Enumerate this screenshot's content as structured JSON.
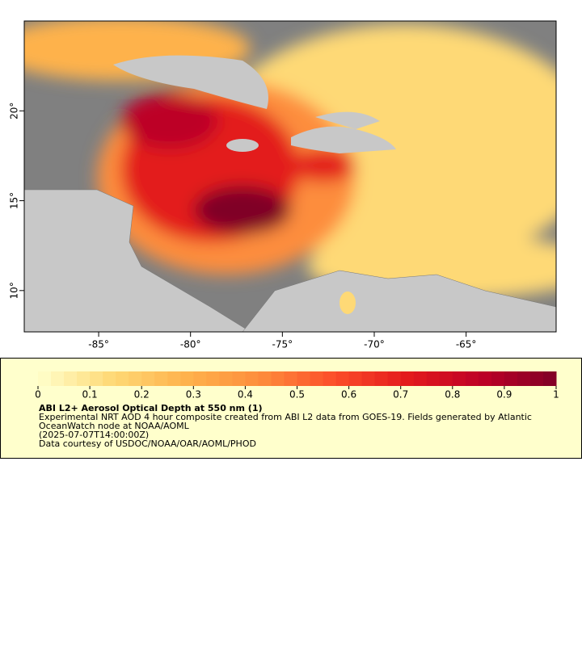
{
  "map": {
    "xlim": [
      -89.05,
      -60.1
    ],
    "ylim": [
      7.7,
      25
    ],
    "xticks": [
      {
        "value": -85,
        "label": "-85°"
      },
      {
        "value": -80,
        "label": "-80°"
      },
      {
        "value": -75,
        "label": "-75°"
      },
      {
        "value": -70,
        "label": "-70°"
      },
      {
        "value": -65,
        "label": "-65°"
      }
    ],
    "yticks": [
      {
        "value": 10,
        "label": "10°"
      },
      {
        "value": 15,
        "label": "15°"
      },
      {
        "value": 20,
        "label": "20°"
      }
    ]
  },
  "legend": {
    "colorbar": {
      "range": [
        0,
        1
      ],
      "ticks": [
        0,
        0.1,
        0.2,
        0.3,
        0.4,
        0.5,
        0.6,
        0.7,
        0.8,
        0.9,
        1
      ],
      "colors": [
        "#ffffcc",
        "#fed976",
        "#feb24c",
        "#fd8d3c",
        "#fc4e2a",
        "#e31a1c",
        "#bd0026",
        "#800026"
      ],
      "steps": 40
    },
    "title": "ABI L2+ Aerosol Optical Depth at 550 nm (1)",
    "lines": [
      "Experimental NRT AOD 4 hour composite created from ABI L2 data from GOES-19. Fields generated by Atlantic OceanWatch node at NOAA/AOML",
      "(2025-07-07T14:00:00Z)",
      "Data courtesy of USDOC/NOAA/OAR/AOML/PHOD"
    ]
  }
}
